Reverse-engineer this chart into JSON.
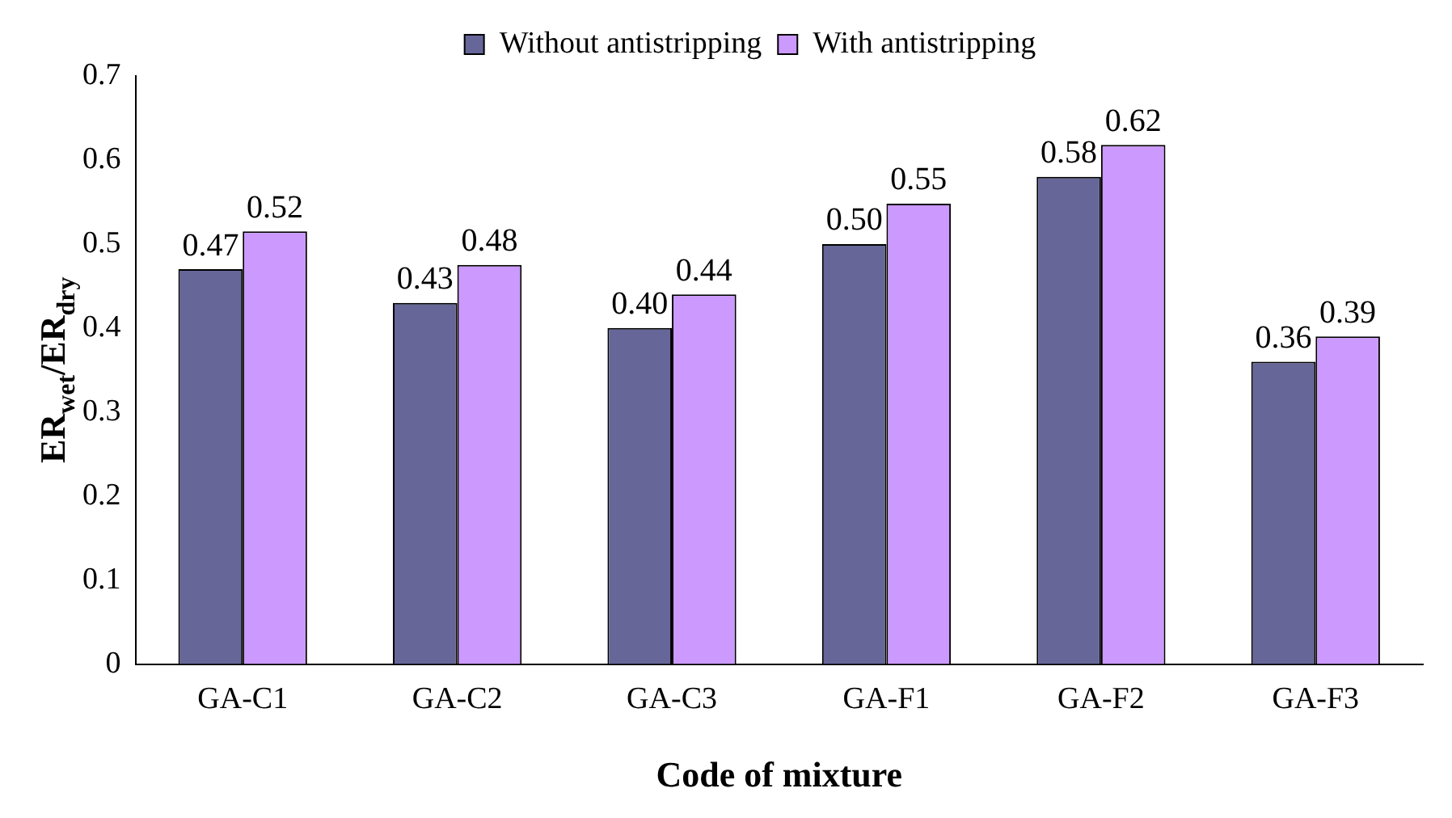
{
  "chart_data": {
    "type": "bar",
    "xlabel": "Code of mixture",
    "ylabel": "ER$_{wet}$/ER$_{dry}$",
    "categories": [
      "GA-C1",
      "GA-C2",
      "GA-C3",
      "GA-F1",
      "GA-F2",
      "GA-F3"
    ],
    "series": [
      {
        "name": "Without antistripping",
        "color": "#666699",
        "values": [
          0.47,
          0.43,
          0.4,
          0.5,
          0.58,
          0.36
        ],
        "value_labels": [
          "0.47",
          "0.43",
          "0.40",
          "0.50",
          "0.58",
          "0.36"
        ]
      },
      {
        "name": "With antistripping",
        "color": "#cc99ff",
        "values": [
          0.515,
          0.475,
          0.44,
          0.548,
          0.618,
          0.39
        ],
        "value_labels": [
          "0.52",
          "0.48",
          "0.44",
          "0.55",
          "0.62",
          "0.39"
        ]
      }
    ],
    "ylim": [
      0,
      0.7
    ],
    "yticks": [
      0,
      0.1,
      0.2,
      0.3,
      0.4,
      0.5,
      0.6,
      0.7
    ],
    "grid": false,
    "legend": "top"
  }
}
